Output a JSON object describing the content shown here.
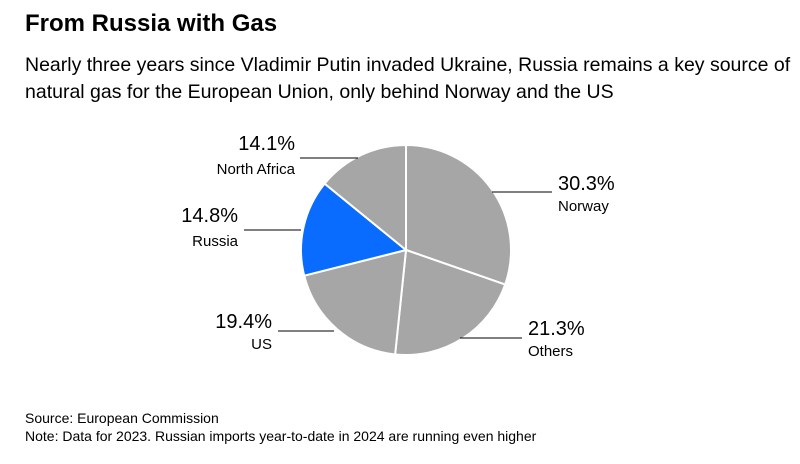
{
  "header": {
    "title": "From Russia with Gas",
    "subtitle": "Nearly three years since Vladimir Putin invaded Ukraine, Russia remains a key source of natural gas for the European Union, only behind Norway and the US"
  },
  "footer": {
    "source": "Source: European Commission",
    "note": "Note: Data for 2023. Russian imports year-to-date in 2024 are running even higher"
  },
  "colors": {
    "highlight": "#0a6cff",
    "slice": "#a6a6a6",
    "slice_border": "#ffffff",
    "leader": "#000000"
  },
  "chart_data": {
    "type": "pie",
    "start": "12 o'clock",
    "direction": "clockwise",
    "slices": [
      {
        "label": "Norway",
        "value": 30.3,
        "value_label": "30.3%",
        "highlight": false
      },
      {
        "label": "Others",
        "value": 21.3,
        "value_label": "21.3%",
        "highlight": false
      },
      {
        "label": "US",
        "value": 19.4,
        "value_label": "19.4%",
        "highlight": false
      },
      {
        "label": "Russia",
        "value": 14.8,
        "value_label": "14.8%",
        "highlight": true
      },
      {
        "label": "North Africa",
        "value": 14.1,
        "value_label": "14.1%",
        "highlight": false
      }
    ]
  }
}
